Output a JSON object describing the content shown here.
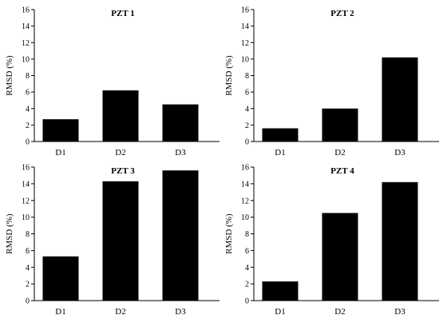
{
  "chart_data": [
    {
      "type": "bar",
      "title": "PZT 1",
      "categories": [
        "D1",
        "D2",
        "D3"
      ],
      "values": [
        2.7,
        6.2,
        4.5
      ],
      "ylabel": "RMSD (%)",
      "xlabel": "",
      "ylim": [
        0,
        16
      ],
      "yticks": [
        0,
        2,
        4,
        6,
        8,
        10,
        12,
        14,
        16
      ],
      "grid": false,
      "bar_color": "#000000"
    },
    {
      "type": "bar",
      "title": "PZT 2",
      "categories": [
        "D1",
        "D2",
        "D3"
      ],
      "values": [
        1.6,
        4.0,
        10.2
      ],
      "ylabel": "RMSD (%)",
      "xlabel": "",
      "ylim": [
        0,
        16
      ],
      "yticks": [
        0,
        2,
        4,
        6,
        8,
        10,
        12,
        14,
        16
      ],
      "grid": false,
      "bar_color": "#000000"
    },
    {
      "type": "bar",
      "title": "PZT 3",
      "categories": [
        "D1",
        "D2",
        "D3"
      ],
      "values": [
        5.3,
        14.3,
        15.6
      ],
      "ylabel": "RMSD (%)",
      "xlabel": "",
      "ylim": [
        0,
        16
      ],
      "yticks": [
        0,
        2,
        4,
        6,
        8,
        10,
        12,
        14,
        16
      ],
      "grid": false,
      "bar_color": "#000000"
    },
    {
      "type": "bar",
      "title": "PZT 4",
      "categories": [
        "D1",
        "D2",
        "D3"
      ],
      "values": [
        2.3,
        10.5,
        14.2
      ],
      "ylabel": "RMSD (%)",
      "xlabel": "",
      "ylim": [
        0,
        16
      ],
      "yticks": [
        0,
        2,
        4,
        6,
        8,
        10,
        12,
        14,
        16
      ],
      "grid": false,
      "bar_color": "#000000"
    }
  ]
}
